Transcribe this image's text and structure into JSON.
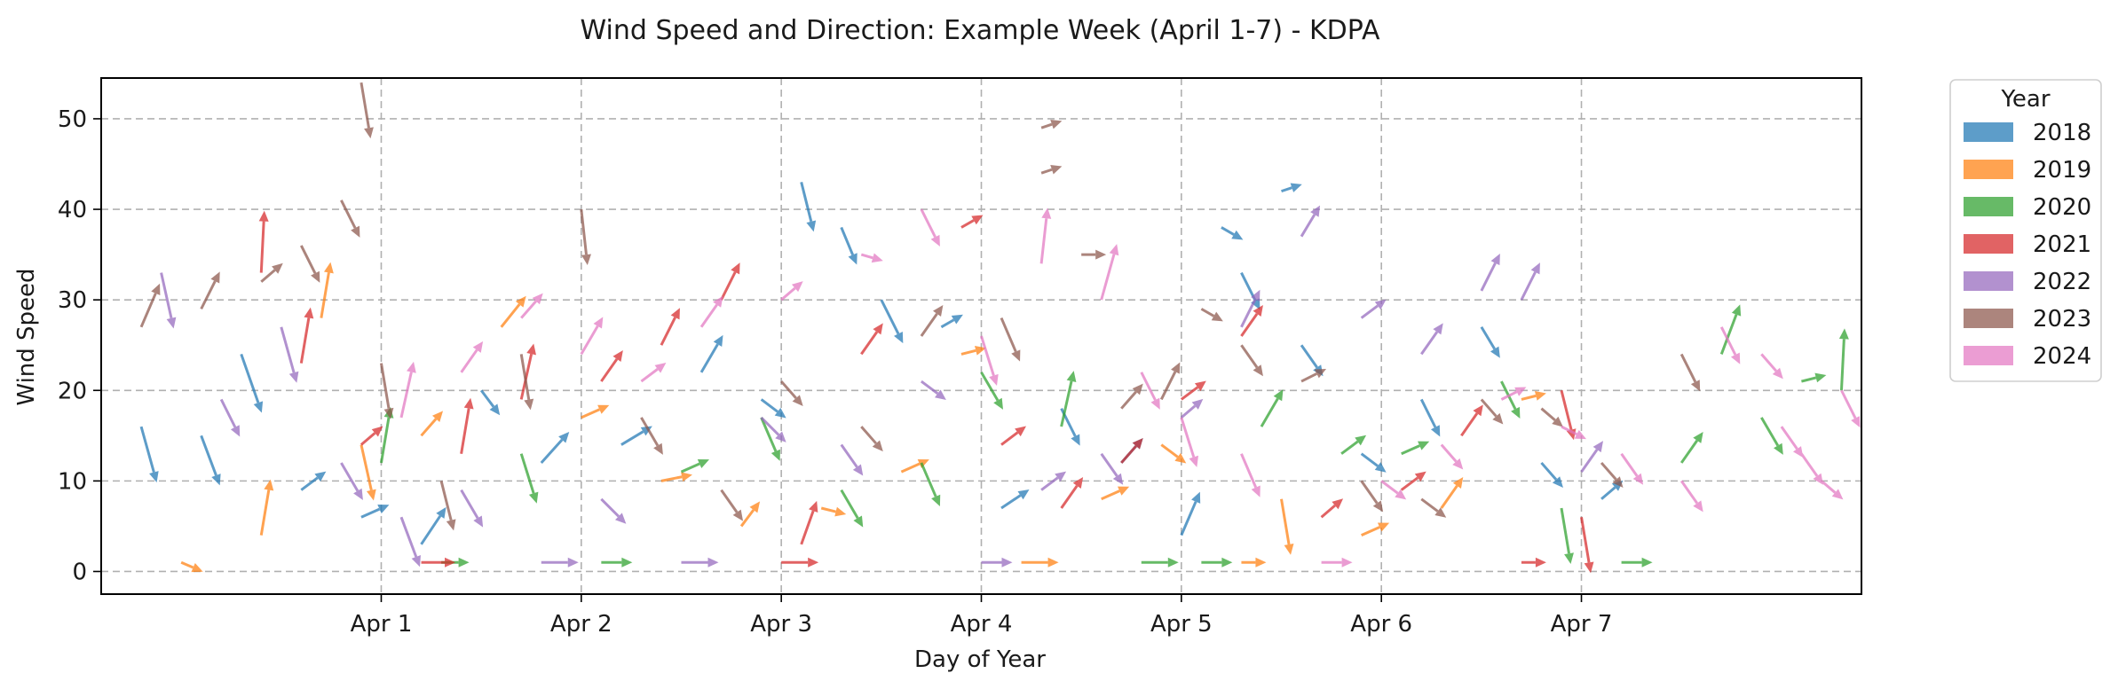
{
  "chart_data": {
    "type": "quiver",
    "title": "Wind Speed and Direction: Example Week (April 1-7) - KDPA",
    "xlabel": "Day of Year",
    "ylabel": "Wind Speed",
    "xlim": [
      90.6,
      99.4
    ],
    "ylim": [
      -2.5,
      54.5
    ],
    "x_ticks": [
      {
        "value": 92,
        "label": "Apr 1"
      },
      {
        "value": 93,
        "label": "Apr 2"
      },
      {
        "value": 94,
        "label": "Apr 3"
      },
      {
        "value": 95,
        "label": "Apr 4"
      },
      {
        "value": 96,
        "label": "Apr 5"
      },
      {
        "value": 97,
        "label": "Apr 6"
      },
      {
        "value": 98,
        "label": "Apr 7"
      }
    ],
    "y_ticks": [
      0,
      10,
      20,
      30,
      40,
      50
    ],
    "grid": true,
    "legend": {
      "title": "Year",
      "placement": "outside-right-top",
      "entries": [
        {
          "label": "2018",
          "color": "#1f77b4"
        },
        {
          "label": "2019",
          "color": "#ff7f0e"
        },
        {
          "label": "2020",
          "color": "#2ca02c"
        },
        {
          "label": "2021",
          "color": "#d62728"
        },
        {
          "label": "2022",
          "color": "#9467bd"
        },
        {
          "label": "2023",
          "color": "#8c564b"
        },
        {
          "label": "2024",
          "color": "#e377c2"
        }
      ]
    },
    "series": [
      {
        "name": "2018",
        "color": "#1f77b4",
        "points": [
          [
            90.8,
            16,
            0.25,
            -0.9
          ],
          [
            91.1,
            15,
            0.3,
            -0.8
          ],
          [
            91.3,
            24,
            0.35,
            -1
          ],
          [
            91.6,
            9,
            0.4,
            0.3
          ],
          [
            91.9,
            6,
            0.45,
            0.2
          ],
          [
            92.2,
            3,
            0.4,
            0.6
          ],
          [
            92.5,
            20,
            0.3,
            -0.4
          ],
          [
            92.8,
            12,
            0.45,
            0.5
          ],
          [
            93.2,
            14,
            0.5,
            0.3
          ],
          [
            93.6,
            22,
            0.35,
            0.6
          ],
          [
            93.9,
            19,
            0.4,
            -0.3
          ],
          [
            94.1,
            43,
            0.2,
            -0.8
          ],
          [
            94.3,
            38,
            0.25,
            -0.6
          ],
          [
            94.5,
            30,
            0.35,
            -0.7
          ],
          [
            94.8,
            27,
            0.35,
            0.2
          ],
          [
            95.1,
            7,
            0.45,
            0.3
          ],
          [
            95.4,
            18,
            0.3,
            -0.6
          ],
          [
            95.7,
            12,
            0.35,
            0.4
          ],
          [
            96.0,
            4,
            0.3,
            0.7
          ],
          [
            96.2,
            38,
            0.35,
            -0.2
          ],
          [
            96.3,
            33,
            0.3,
            -0.6
          ],
          [
            96.5,
            42,
            0.3,
            0.1
          ],
          [
            96.6,
            25,
            0.35,
            -0.5
          ],
          [
            96.9,
            13,
            0.4,
            -0.3
          ],
          [
            97.2,
            19,
            0.3,
            -0.6
          ],
          [
            97.5,
            27,
            0.3,
            -0.5
          ],
          [
            97.8,
            12,
            0.35,
            -0.4
          ],
          [
            98.1,
            8,
            0.35,
            0.3
          ]
        ]
      },
      {
        "name": "2019",
        "color": "#ff7f0e",
        "points": [
          [
            91.0,
            1,
            0.35,
            -0.15
          ],
          [
            91.4,
            4,
            0.15,
            0.9
          ],
          [
            91.7,
            28,
            0.15,
            0.9
          ],
          [
            91.9,
            14,
            0.2,
            -0.9
          ],
          [
            92.2,
            15,
            0.35,
            0.4
          ],
          [
            92.6,
            27,
            0.4,
            0.5
          ],
          [
            93.0,
            17,
            0.45,
            0.2
          ],
          [
            93.4,
            10,
            0.5,
            0.1
          ],
          [
            93.8,
            5,
            0.3,
            0.4
          ],
          [
            94.2,
            7,
            0.4,
            -0.1
          ],
          [
            94.6,
            11,
            0.45,
            0.2
          ],
          [
            94.9,
            24,
            0.4,
            0.1
          ],
          [
            95.2,
            1,
            0.6,
            0
          ],
          [
            95.6,
            8,
            0.45,
            0.2
          ],
          [
            95.9,
            14,
            0.4,
            -0.3
          ],
          [
            96.3,
            1,
            0.4,
            0
          ],
          [
            96.5,
            8,
            0.15,
            -0.9
          ],
          [
            96.9,
            4,
            0.45,
            0.2
          ],
          [
            97.3,
            7,
            0.35,
            0.5
          ],
          [
            97.7,
            19,
            0.4,
            0.1
          ]
        ]
      },
      {
        "name": "2020",
        "color": "#2ca02c",
        "points": [
          [
            92.0,
            12,
            0.15,
            0.9
          ],
          [
            92.3,
            1,
            0.45,
            0
          ],
          [
            92.7,
            13,
            0.25,
            -0.8
          ],
          [
            93.1,
            1,
            0.5,
            0
          ],
          [
            93.5,
            11,
            0.45,
            0.2
          ],
          [
            93.9,
            17,
            0.3,
            -0.7
          ],
          [
            94.3,
            9,
            0.35,
            -0.6
          ],
          [
            94.7,
            12,
            0.3,
            -0.7
          ],
          [
            95.0,
            22,
            0.35,
            -0.6
          ],
          [
            95.4,
            16,
            0.2,
            0.9
          ],
          [
            95.8,
            1,
            0.6,
            0
          ],
          [
            96.1,
            1,
            0.5,
            0
          ],
          [
            96.4,
            16,
            0.35,
            0.6
          ],
          [
            96.8,
            13,
            0.4,
            0.3
          ],
          [
            97.1,
            13,
            0.45,
            0.2
          ],
          [
            97.6,
            21,
            0.3,
            -0.6
          ],
          [
            97.9,
            7,
            0.15,
            -0.9
          ],
          [
            98.2,
            1,
            0.5,
            0
          ],
          [
            98.5,
            12,
            0.35,
            0.5
          ],
          [
            98.7,
            24,
            0.3,
            0.8
          ],
          [
            98.9,
            17,
            0.35,
            -0.6
          ],
          [
            99.1,
            21,
            0.4,
            0.1
          ],
          [
            99.3,
            20,
            0.05,
            1
          ]
        ]
      },
      {
        "name": "2021",
        "color": "#d62728",
        "points": [
          [
            91.4,
            33,
            0.05,
            1
          ],
          [
            91.6,
            23,
            0.15,
            0.9
          ],
          [
            91.9,
            14,
            0.35,
            0.3
          ],
          [
            92.2,
            1,
            0.55,
            0
          ],
          [
            92.4,
            13,
            0.15,
            0.9
          ],
          [
            92.7,
            19,
            0.2,
            0.9
          ],
          [
            93.1,
            21,
            0.35,
            0.5
          ],
          [
            93.4,
            25,
            0.3,
            0.6
          ],
          [
            93.7,
            30,
            0.3,
            0.6
          ],
          [
            94.0,
            1,
            0.6,
            0
          ],
          [
            94.1,
            3,
            0.25,
            0.7
          ],
          [
            94.4,
            24,
            0.35,
            0.5
          ],
          [
            94.9,
            38,
            0.35,
            0.2
          ],
          [
            95.1,
            14,
            0.4,
            0.3
          ],
          [
            95.4,
            7,
            0.35,
            0.5
          ],
          [
            95.7,
            12,
            0.35,
            0.4
          ],
          [
            96.0,
            19,
            0.4,
            0.3
          ],
          [
            96.3,
            26,
            0.35,
            0.5
          ],
          [
            96.7,
            6,
            0.35,
            0.3
          ],
          [
            97.1,
            9,
            0.4,
            0.3
          ],
          [
            97.4,
            15,
            0.35,
            0.5
          ],
          [
            97.7,
            1,
            0.4,
            0
          ],
          [
            97.9,
            20,
            0.2,
            -0.8
          ],
          [
            98.0,
            6,
            0.15,
            -0.9
          ]
        ]
      },
      {
        "name": "2022",
        "color": "#9467bd",
        "points": [
          [
            90.9,
            33,
            0.2,
            -0.9
          ],
          [
            91.2,
            19,
            0.3,
            -0.6
          ],
          [
            91.5,
            27,
            0.25,
            -0.9
          ],
          [
            91.8,
            12,
            0.35,
            -0.6
          ],
          [
            92.1,
            6,
            0.3,
            -0.8
          ],
          [
            92.4,
            9,
            0.35,
            -0.6
          ],
          [
            92.8,
            1,
            0.6,
            0
          ],
          [
            93.1,
            8,
            0.4,
            -0.4
          ],
          [
            93.5,
            1,
            0.6,
            0
          ],
          [
            93.9,
            17,
            0.4,
            -0.4
          ],
          [
            94.3,
            14,
            0.35,
            -0.5
          ],
          [
            94.7,
            21,
            0.4,
            -0.3
          ],
          [
            95.0,
            1,
            0.5,
            0
          ],
          [
            95.3,
            9,
            0.4,
            0.3
          ],
          [
            95.6,
            13,
            0.35,
            -0.5
          ],
          [
            96.0,
            17,
            0.35,
            0.3
          ],
          [
            96.3,
            27,
            0.3,
            0.6
          ],
          [
            96.6,
            37,
            0.3,
            0.5
          ],
          [
            96.9,
            28,
            0.4,
            0.3
          ],
          [
            97.2,
            24,
            0.35,
            0.5
          ],
          [
            97.5,
            31,
            0.3,
            0.6
          ],
          [
            97.7,
            30,
            0.3,
            0.6
          ],
          [
            98.0,
            11,
            0.35,
            0.5
          ]
        ]
      },
      {
        "name": "2023",
        "color": "#8c564b",
        "points": [
          [
            90.8,
            27,
            0.3,
            0.7
          ],
          [
            91.1,
            29,
            0.3,
            0.6
          ],
          [
            91.4,
            32,
            0.35,
            0.3
          ],
          [
            91.6,
            36,
            0.3,
            -0.6
          ],
          [
            91.8,
            41,
            0.3,
            -0.6
          ],
          [
            91.9,
            54,
            0.15,
            -0.9
          ],
          [
            92.0,
            23,
            0.15,
            -0.9
          ],
          [
            92.3,
            10,
            0.2,
            -0.8
          ],
          [
            92.7,
            24,
            0.15,
            -0.9
          ],
          [
            93.0,
            40,
            0.1,
            -0.9
          ],
          [
            93.3,
            17,
            0.35,
            -0.6
          ],
          [
            93.7,
            9,
            0.35,
            -0.5
          ],
          [
            94.0,
            21,
            0.35,
            -0.4
          ],
          [
            94.4,
            16,
            0.35,
            -0.4
          ],
          [
            94.7,
            26,
            0.35,
            0.5
          ],
          [
            95.1,
            28,
            0.3,
            -0.7
          ],
          [
            95.3,
            44,
            0.3,
            0.1
          ],
          [
            95.3,
            49,
            0.3,
            0.1
          ],
          [
            95.5,
            35,
            0.4,
            0
          ],
          [
            95.7,
            18,
            0.35,
            0.4
          ],
          [
            95.9,
            19,
            0.3,
            0.6
          ],
          [
            96.1,
            29,
            0.35,
            -0.2
          ],
          [
            96.3,
            25,
            0.35,
            -0.5
          ],
          [
            96.6,
            21,
            0.4,
            0.2
          ],
          [
            96.9,
            10,
            0.35,
            -0.5
          ],
          [
            97.2,
            8,
            0.4,
            -0.3
          ],
          [
            97.5,
            19,
            0.35,
            -0.4
          ],
          [
            97.8,
            18,
            0.35,
            -0.3
          ],
          [
            98.1,
            12,
            0.35,
            -0.4
          ],
          [
            98.5,
            24,
            0.3,
            -0.6
          ]
        ]
      },
      {
        "name": "2024",
        "color": "#e377c2",
        "points": [
          [
            92.1,
            17,
            0.2,
            0.9
          ],
          [
            92.4,
            22,
            0.35,
            0.5
          ],
          [
            92.7,
            28,
            0.35,
            0.4
          ],
          [
            93.0,
            24,
            0.35,
            0.6
          ],
          [
            93.3,
            21,
            0.4,
            0.3
          ],
          [
            93.6,
            27,
            0.35,
            0.5
          ],
          [
            94.0,
            30,
            0.35,
            0.3
          ],
          [
            94.4,
            35,
            0.35,
            -0.1
          ],
          [
            94.7,
            40,
            0.3,
            -0.6
          ],
          [
            95.0,
            26,
            0.25,
            -0.8
          ],
          [
            95.3,
            34,
            0.1,
            0.9
          ],
          [
            95.6,
            30,
            0.25,
            0.9
          ],
          [
            95.8,
            22,
            0.3,
            -0.6
          ],
          [
            96.0,
            17,
            0.25,
            -0.8
          ],
          [
            96.3,
            13,
            0.3,
            -0.7
          ],
          [
            96.7,
            1,
            0.5,
            0
          ],
          [
            97.0,
            10,
            0.4,
            -0.3
          ],
          [
            97.3,
            14,
            0.35,
            -0.4
          ],
          [
            97.6,
            19,
            0.4,
            0.2
          ],
          [
            97.9,
            16,
            0.4,
            -0.2
          ],
          [
            98.2,
            13,
            0.35,
            -0.5
          ],
          [
            98.5,
            10,
            0.35,
            -0.5
          ],
          [
            98.7,
            27,
            0.3,
            -0.6
          ],
          [
            98.9,
            24,
            0.35,
            -0.4
          ],
          [
            99.0,
            16,
            0.35,
            -0.5
          ],
          [
            99.1,
            13,
            0.35,
            -0.5
          ],
          [
            99.2,
            10,
            0.35,
            -0.3
          ],
          [
            99.3,
            20,
            0.3,
            -0.6
          ]
        ]
      }
    ]
  }
}
